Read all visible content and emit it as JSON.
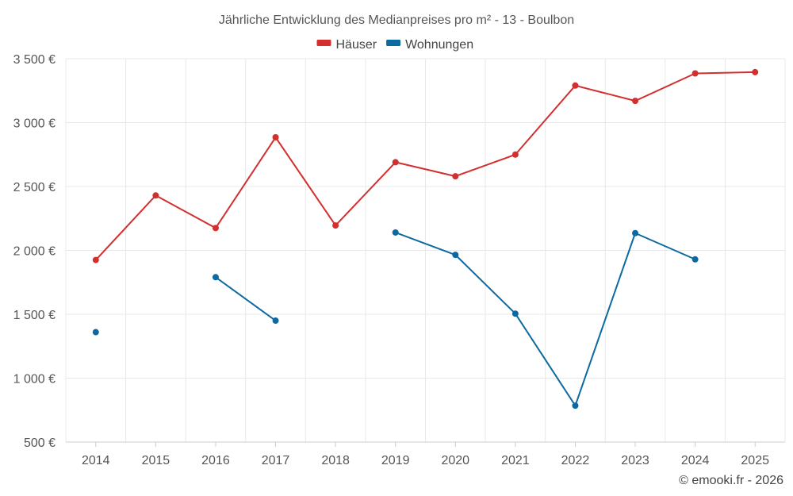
{
  "chart_data": {
    "type": "line",
    "title": "Jährliche Entwicklung des Medianpreises pro m² - 13 - Boulbon",
    "xlabel": "",
    "ylabel": "",
    "categories": [
      "2014",
      "2015",
      "2016",
      "2017",
      "2018",
      "2019",
      "2020",
      "2021",
      "2022",
      "2023",
      "2024",
      "2025"
    ],
    "ylim": [
      500,
      3500
    ],
    "yticks": [
      500,
      1000,
      1500,
      2000,
      2500,
      3000,
      3500
    ],
    "ytick_labels": [
      "500 €",
      "1 000 €",
      "1 500 €",
      "2 000 €",
      "2 500 €",
      "3 000 €",
      "3 500 €"
    ],
    "grid": true,
    "legend_position": "top-center",
    "series": [
      {
        "name": "Häuser",
        "color": "#d32f2f",
        "values": [
          1925,
          2430,
          2175,
          2885,
          2195,
          2690,
          2580,
          2750,
          3290,
          3170,
          3385,
          3395
        ]
      },
      {
        "name": "Wohnungen",
        "color": "#0d6aa0",
        "values": [
          1360,
          null,
          1790,
          1450,
          null,
          2140,
          1965,
          1505,
          785,
          2135,
          1930,
          null
        ]
      }
    ]
  },
  "footer": {
    "copyright": "© emooki.fr - 2026"
  }
}
